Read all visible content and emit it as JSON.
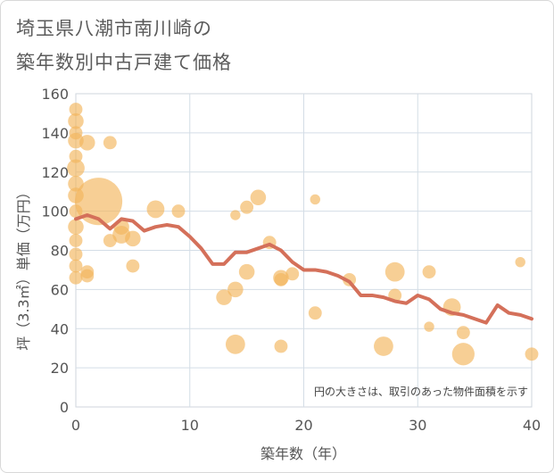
{
  "chart_data": {
    "type": "scatter",
    "title_line1": "埼玉県八潮市南川崎の",
    "title_line2": "築年数別中古戸建て価格",
    "xlabel": "築年数（年）",
    "ylabel": "坪（3.3㎡）単価（万円）",
    "xlim": [
      0,
      40
    ],
    "ylim": [
      0,
      160
    ],
    "x_ticks": [
      0,
      10,
      20,
      30,
      40
    ],
    "y_ticks": [
      0,
      20,
      40,
      60,
      80,
      100,
      120,
      140,
      160
    ],
    "note": "円の大きさは、取引のあった物件面積を示す",
    "bubble_color": "#f2b65c",
    "line_color": "#d4705a",
    "bubbles": [
      {
        "x": 0,
        "y": 152,
        "s": 2
      },
      {
        "x": 0,
        "y": 146,
        "s": 3
      },
      {
        "x": 0,
        "y": 140,
        "s": 2
      },
      {
        "x": 0,
        "y": 136,
        "s": 3
      },
      {
        "x": 0,
        "y": 128,
        "s": 2
      },
      {
        "x": 0,
        "y": 122,
        "s": 4
      },
      {
        "x": 0,
        "y": 114,
        "s": 3
      },
      {
        "x": 0,
        "y": 108,
        "s": 3
      },
      {
        "x": 0,
        "y": 100,
        "s": 2
      },
      {
        "x": 0,
        "y": 92,
        "s": 3
      },
      {
        "x": 0,
        "y": 85,
        "s": 2
      },
      {
        "x": 0,
        "y": 78,
        "s": 2
      },
      {
        "x": 0,
        "y": 72,
        "s": 2
      },
      {
        "x": 0,
        "y": 66,
        "s": 2
      },
      {
        "x": 1,
        "y": 135,
        "s": 3
      },
      {
        "x": 1,
        "y": 69,
        "s": 2
      },
      {
        "x": 1,
        "y": 67,
        "s": 2
      },
      {
        "x": 2,
        "y": 105,
        "s": 40
      },
      {
        "x": 3,
        "y": 135,
        "s": 2
      },
      {
        "x": 3,
        "y": 85,
        "s": 2
      },
      {
        "x": 4,
        "y": 88,
        "s": 4
      },
      {
        "x": 4,
        "y": 92,
        "s": 3
      },
      {
        "x": 5,
        "y": 86,
        "s": 3
      },
      {
        "x": 5,
        "y": 72,
        "s": 2
      },
      {
        "x": 7,
        "y": 101,
        "s": 4
      },
      {
        "x": 9,
        "y": 100,
        "s": 2
      },
      {
        "x": 13,
        "y": 56,
        "s": 3
      },
      {
        "x": 14,
        "y": 98,
        "s": 1
      },
      {
        "x": 14,
        "y": 60,
        "s": 3
      },
      {
        "x": 14,
        "y": 32,
        "s": 5
      },
      {
        "x": 15,
        "y": 102,
        "s": 2
      },
      {
        "x": 15,
        "y": 69,
        "s": 3
      },
      {
        "x": 16,
        "y": 107,
        "s": 3
      },
      {
        "x": 17,
        "y": 84,
        "s": 2
      },
      {
        "x": 18,
        "y": 66,
        "s": 3
      },
      {
        "x": 18,
        "y": 65,
        "s": 2
      },
      {
        "x": 18,
        "y": 31,
        "s": 2
      },
      {
        "x": 19,
        "y": 68,
        "s": 2
      },
      {
        "x": 21,
        "y": 106,
        "s": 1
      },
      {
        "x": 21,
        "y": 48,
        "s": 2
      },
      {
        "x": 24,
        "y": 65,
        "s": 2
      },
      {
        "x": 27,
        "y": 31,
        "s": 5
      },
      {
        "x": 28,
        "y": 69,
        "s": 5
      },
      {
        "x": 28,
        "y": 57,
        "s": 2
      },
      {
        "x": 31,
        "y": 69,
        "s": 2
      },
      {
        "x": 31,
        "y": 41,
        "s": 1
      },
      {
        "x": 33,
        "y": 51,
        "s": 4
      },
      {
        "x": 34,
        "y": 38,
        "s": 2
      },
      {
        "x": 34,
        "y": 27,
        "s": 7
      },
      {
        "x": 39,
        "y": 74,
        "s": 1
      },
      {
        "x": 40,
        "y": 27,
        "s": 2
      }
    ],
    "line": {
      "x": [
        0,
        1,
        2,
        3,
        4,
        5,
        6,
        7,
        8,
        9,
        10,
        11,
        12,
        13,
        14,
        15,
        16,
        17,
        18,
        19,
        20,
        21,
        22,
        23,
        24,
        25,
        26,
        27,
        28,
        29,
        30,
        31,
        32,
        33,
        34,
        35,
        36,
        37,
        38,
        39,
        40
      ],
      "y": [
        96,
        98,
        96,
        91,
        96,
        95,
        90,
        92,
        93,
        92,
        87,
        81,
        73,
        73,
        79,
        79,
        81,
        83,
        80,
        74,
        70,
        70,
        69,
        67,
        64,
        57,
        57,
        56,
        54,
        53,
        57,
        55,
        50,
        48,
        47,
        45,
        43,
        52,
        48,
        47,
        45
      ]
    }
  }
}
